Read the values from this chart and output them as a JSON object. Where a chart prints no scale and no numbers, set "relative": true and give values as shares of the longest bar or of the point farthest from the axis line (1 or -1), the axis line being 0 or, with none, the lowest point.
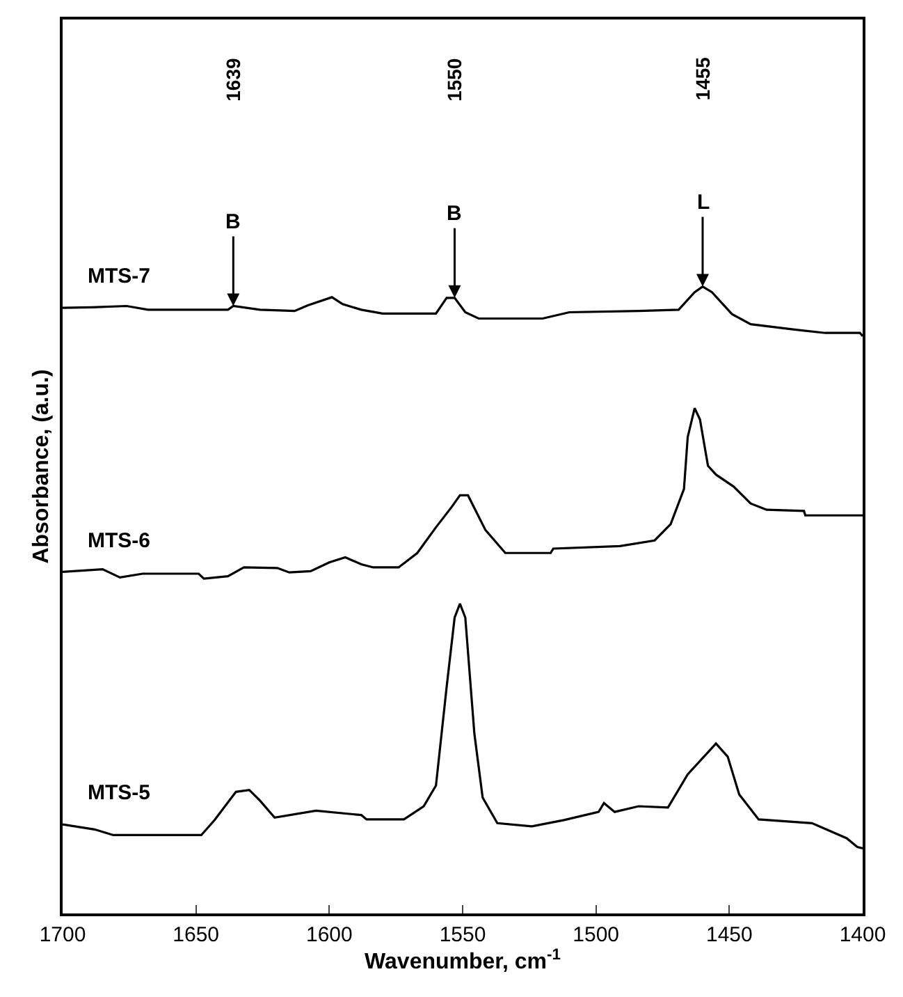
{
  "chart_data": {
    "type": "line",
    "relative": true,
    "xlabel": "Wavenumber, cm$^{-1}$",
    "ylabel": "Absorbance, (a.u.)",
    "xlim": [
      1700,
      1400
    ],
    "xticks": [
      1700,
      1650,
      1600,
      1550,
      1500,
      1450,
      1400
    ],
    "legend": false,
    "marker": "none",
    "line_style": "solid",
    "tick_labels": "x",
    "series": [
      {
        "name": "MTS-7",
        "color": "#000000",
        "x": [
          1700,
          1689,
          1676,
          1668,
          1638,
          1636,
          1626,
          1613,
          1608,
          1599,
          1595,
          1588,
          1580,
          1560,
          1556,
          1553,
          1549,
          1544,
          1520,
          1510,
          1484,
          1469,
          1463,
          1460,
          1456.5,
          1449,
          1442,
          1425,
          1414,
          1401,
          1400
        ],
        "values": [
          0.966,
          0.967,
          0.969,
          0.963,
          0.963,
          0.969,
          0.963,
          0.961,
          0.97,
          0.983,
          0.972,
          0.963,
          0.957,
          0.957,
          0.982,
          0.982,
          0.959,
          0.949,
          0.949,
          0.959,
          0.961,
          0.963,
          0.991,
          1.0,
          0.991,
          0.956,
          0.94,
          0.931,
          0.926,
          0.926,
          0.921
        ]
      },
      {
        "name": "MTS-6",
        "color": "#000000",
        "x": [
          1700,
          1685,
          1678.5,
          1670,
          1649,
          1647,
          1638,
          1632,
          1619.5,
          1615,
          1607,
          1600,
          1594,
          1588,
          1583.5,
          1574,
          1567,
          1560,
          1554,
          1551,
          1548,
          1541.5,
          1534,
          1517,
          1516,
          1491,
          1478,
          1472,
          1467,
          1465.6,
          1463,
          1461,
          1458,
          1455,
          1448.4,
          1442,
          1436,
          1422,
          1421.5,
          1400
        ],
        "values": [
          0.545,
          0.549,
          0.536,
          0.542,
          0.542,
          0.534,
          0.538,
          0.552,
          0.551,
          0.544,
          0.546,
          0.56,
          0.568,
          0.557,
          0.552,
          0.552,
          0.575,
          0.616,
          0.649,
          0.667,
          0.667,
          0.612,
          0.575,
          0.575,
          0.582,
          0.586,
          0.595,
          0.621,
          0.677,
          0.76,
          0.806,
          0.788,
          0.714,
          0.7,
          0.681,
          0.654,
          0.644,
          0.642,
          0.635,
          0.635
        ]
      },
      {
        "name": "MTS-5",
        "color": "#000000",
        "x": [
          1700,
          1688,
          1681,
          1648,
          1643,
          1635,
          1630,
          1626,
          1620.5,
          1605,
          1588,
          1586,
          1572,
          1564.6,
          1560,
          1556,
          1553,
          1551,
          1549,
          1545.6,
          1542.5,
          1537,
          1524,
          1512,
          1499,
          1497,
          1493,
          1484,
          1473,
          1465.6,
          1455,
          1450.6,
          1446.3,
          1439,
          1419,
          1406,
          1402,
          1400
        ],
        "values": [
          0.142,
          0.134,
          0.125,
          0.125,
          0.149,
          0.194,
          0.197,
          0.18,
          0.153,
          0.164,
          0.157,
          0.15,
          0.15,
          0.171,
          0.204,
          0.361,
          0.472,
          0.494,
          0.472,
          0.287,
          0.185,
          0.144,
          0.139,
          0.149,
          0.162,
          0.176,
          0.162,
          0.171,
          0.169,
          0.222,
          0.271,
          0.25,
          0.19,
          0.15,
          0.144,
          0.12,
          0.106,
          0.104
        ]
      }
    ],
    "annotations": [
      "1639",
      {
        "text": "B",
        "x": 1636,
        "y": 0.969
      },
      "1550",
      {
        "text": "B",
        "x": 1553,
        "y": 0.982
      },
      "1455",
      {
        "text": "L",
        "x": 1460,
        "y": 1.0
      }
    ]
  }
}
